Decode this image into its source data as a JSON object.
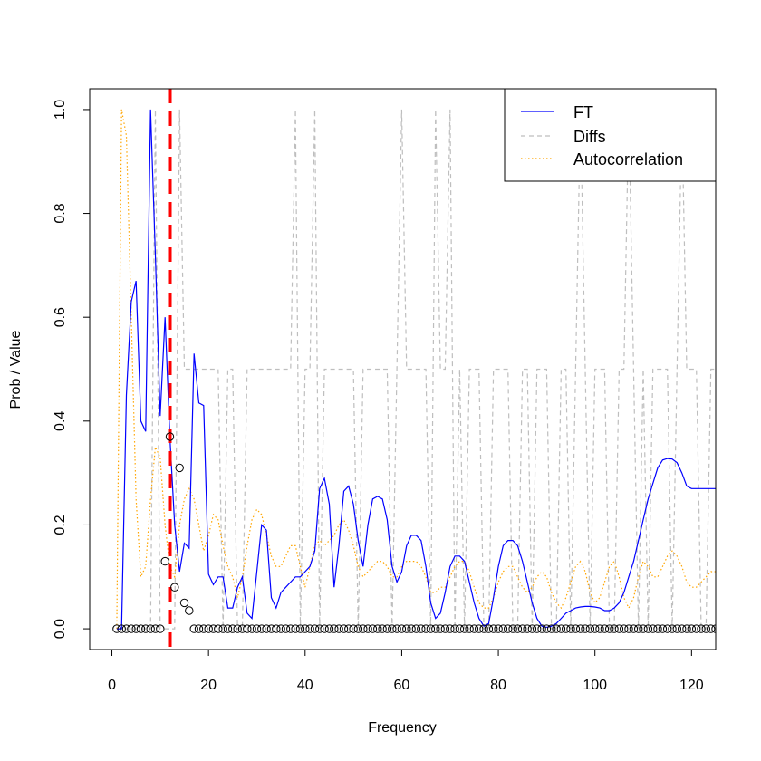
{
  "chart_data": {
    "type": "line",
    "xlabel": "Frequency",
    "ylabel": "Prob / Value",
    "xlim": [
      -4.6,
      125
    ],
    "ylim": [
      -0.04,
      1.04
    ],
    "x_ticks": [
      "0",
      "20",
      "40",
      "60",
      "80",
      "100",
      "120"
    ],
    "y_ticks": [
      "0.0",
      "0.2",
      "0.4",
      "0.6",
      "0.8",
      "1.0"
    ],
    "vline": {
      "x": 12,
      "color": "#ff0000",
      "style": "dashed"
    },
    "legend": {
      "position": "top-right",
      "entries": [
        {
          "label": "FT",
          "color": "#0000ff",
          "style": "solid"
        },
        {
          "label": "Diffs",
          "color": "#bebebe",
          "style": "dashed"
        },
        {
          "label": "Autocorrelation",
          "color": "#ffa500",
          "style": "dotted"
        }
      ]
    },
    "series": [
      {
        "name": "FT",
        "color": "#0000ff",
        "style": "solid",
        "x": [
          1,
          2,
          3,
          4,
          5,
          6,
          7,
          8,
          9,
          10,
          11,
          12,
          13,
          14,
          15,
          16,
          17,
          18,
          19,
          20,
          21,
          22,
          23,
          24,
          25,
          26,
          27,
          28,
          29,
          30,
          31,
          32,
          33,
          34,
          35,
          36,
          37,
          38,
          39,
          40,
          41,
          42,
          43,
          44,
          45,
          46,
          47,
          48,
          49,
          50,
          51,
          52,
          53,
          54,
          55,
          56,
          57,
          58,
          59,
          60,
          61,
          62,
          63,
          64,
          65,
          66,
          67,
          68,
          69,
          70,
          71,
          72,
          73,
          74,
          75,
          76,
          77,
          78,
          79,
          80,
          81,
          82,
          83,
          84,
          85,
          86,
          87,
          88,
          89,
          90,
          91,
          92,
          93,
          94,
          95,
          96,
          97,
          98,
          99,
          100,
          101,
          102,
          103,
          104,
          105,
          106,
          107,
          108,
          109,
          110,
          111,
          112,
          113,
          114,
          115,
          116,
          117,
          118,
          119,
          120,
          121,
          122,
          123,
          124,
          125
        ],
        "values": [
          0,
          0,
          0.45,
          0.63,
          0.67,
          0.4,
          0.38,
          1.0,
          0.72,
          0.41,
          0.6,
          0.37,
          0.2,
          0.11,
          0.165,
          0.155,
          0.53,
          0.435,
          0.43,
          0.105,
          0.085,
          0.1,
          0.1,
          0.04,
          0.04,
          0.08,
          0.1,
          0.03,
          0.02,
          0.11,
          0.2,
          0.19,
          0.06,
          0.04,
          0.07,
          0.08,
          0.09,
          0.1,
          0.1,
          0.11,
          0.12,
          0.15,
          0.27,
          0.29,
          0.24,
          0.08,
          0.16,
          0.265,
          0.275,
          0.24,
          0.17,
          0.12,
          0.2,
          0.25,
          0.255,
          0.25,
          0.21,
          0.12,
          0.09,
          0.11,
          0.16,
          0.18,
          0.18,
          0.17,
          0.12,
          0.05,
          0.02,
          0.03,
          0.07,
          0.12,
          0.14,
          0.14,
          0.13,
          0.09,
          0.05,
          0.02,
          0.005,
          0.01,
          0.06,
          0.12,
          0.16,
          0.17,
          0.17,
          0.16,
          0.13,
          0.09,
          0.05,
          0.02,
          0.005,
          0.003,
          0.005,
          0.01,
          0.02,
          0.03,
          0.035,
          0.04,
          0.042,
          0.043,
          0.043,
          0.042,
          0.04,
          0.035,
          0.035,
          0.04,
          0.05,
          0.07,
          0.1,
          0.13,
          0.17,
          0.21,
          0.25,
          0.28,
          0.31,
          0.325,
          0.328,
          0.327,
          0.32,
          0.3,
          0.275,
          0.27,
          0.27,
          0.27,
          0.27,
          0.27,
          0.27
        ]
      },
      {
        "name": "Diffs",
        "color": "#bebebe",
        "style": "dashed",
        "x": [
          1,
          2,
          3,
          4,
          5,
          6,
          7,
          8,
          9,
          10,
          11,
          12,
          13,
          14,
          15,
          16,
          17,
          18,
          19,
          20,
          21,
          22,
          23,
          24,
          25,
          26,
          27,
          28,
          29,
          30,
          31,
          32,
          33,
          34,
          35,
          36,
          37,
          38,
          39,
          40,
          41,
          42,
          43,
          44,
          45,
          46,
          47,
          48,
          49,
          50,
          51,
          52,
          53,
          54,
          55,
          56,
          57,
          58,
          59,
          60,
          61,
          62,
          63,
          64,
          65,
          66,
          67,
          68,
          69,
          70,
          71,
          72,
          73,
          74,
          75,
          76,
          77,
          78,
          79,
          80,
          81,
          82,
          83,
          84,
          85,
          86,
          87,
          88,
          89,
          90,
          91,
          92,
          93,
          94,
          95,
          96,
          97,
          98,
          99,
          100,
          101,
          102,
          103,
          104,
          105,
          106,
          107,
          108,
          109,
          110,
          111,
          112,
          113,
          114,
          115,
          116,
          117,
          118,
          119,
          120,
          121,
          122,
          123,
          124,
          125
        ],
        "values": [
          0,
          0,
          0,
          0,
          0,
          0,
          0,
          0,
          1,
          0,
          0,
          0,
          0,
          1,
          0.5,
          0.5,
          0.5,
          0.5,
          0.5,
          0.5,
          0.5,
          0.5,
          0,
          0.5,
          0.5,
          0,
          0,
          0.5,
          0.5,
          0.5,
          0.5,
          0.5,
          0.5,
          0.5,
          0.5,
          0.5,
          0.5,
          1,
          0,
          0.5,
          0.5,
          1,
          0,
          0.5,
          0.5,
          0.5,
          0.5,
          0.5,
          0.5,
          0.5,
          0,
          0.5,
          0.5,
          0.5,
          0.5,
          0.5,
          0.5,
          0,
          0.5,
          1,
          0.5,
          0.5,
          0.5,
          0.5,
          0.5,
          0,
          1,
          0.5,
          0.5,
          1,
          0,
          0.5,
          0,
          0.5,
          0.5,
          0.5,
          0,
          0,
          0.5,
          0.5,
          0.5,
          0.5,
          0,
          0,
          0.5,
          0.5,
          0,
          0.5,
          0.5,
          0.5,
          0,
          0,
          0.5,
          0.5,
          0,
          0.5,
          1,
          0.5,
          0,
          0.5,
          0.5,
          0.5,
          0,
          0,
          0.5,
          0.5,
          1,
          0.5,
          0,
          0.5,
          0,
          0.5,
          0.5,
          0.5,
          0.5,
          0,
          0.5,
          1,
          0.5,
          0.5,
          0.5,
          0,
          0,
          0.5,
          0.5
        ]
      },
      {
        "name": "Autocorrelation",
        "color": "#ffa500",
        "style": "dotted",
        "x": [
          1,
          2,
          3,
          4,
          5,
          6,
          7,
          8,
          9,
          10,
          11,
          12,
          13,
          14,
          15,
          16,
          17,
          18,
          19,
          20,
          21,
          22,
          23,
          24,
          25,
          26,
          27,
          28,
          29,
          30,
          31,
          32,
          33,
          34,
          35,
          36,
          37,
          38,
          39,
          40,
          41,
          42,
          43,
          44,
          45,
          46,
          47,
          48,
          49,
          50,
          51,
          52,
          53,
          54,
          55,
          56,
          57,
          58,
          59,
          60,
          61,
          62,
          63,
          64,
          65,
          66,
          67,
          68,
          69,
          70,
          71,
          72,
          73,
          74,
          75,
          76,
          77,
          78,
          79,
          80,
          81,
          82,
          83,
          84,
          85,
          86,
          87,
          88,
          89,
          90,
          91,
          92,
          93,
          94,
          95,
          96,
          97,
          98,
          99,
          100,
          101,
          102,
          103,
          104,
          105,
          106,
          107,
          108,
          109,
          110,
          111,
          112,
          113,
          114,
          115,
          116,
          117,
          118,
          119,
          120,
          121,
          122,
          123,
          124,
          125
        ],
        "values": [
          0,
          1.0,
          0.95,
          0.6,
          0.25,
          0.1,
          0.12,
          0.25,
          0.35,
          0.33,
          0.2,
          0.12,
          0.1,
          0.2,
          0.25,
          0.27,
          0.25,
          0.2,
          0.15,
          0.18,
          0.22,
          0.21,
          0.16,
          0.12,
          0.1,
          0.06,
          0.1,
          0.16,
          0.21,
          0.23,
          0.22,
          0.18,
          0.14,
          0.12,
          0.12,
          0.14,
          0.16,
          0.16,
          0.12,
          0.08,
          0.12,
          0.16,
          0.17,
          0.16,
          0.17,
          0.18,
          0.2,
          0.21,
          0.19,
          0.16,
          0.12,
          0.1,
          0.11,
          0.12,
          0.13,
          0.13,
          0.12,
          0.1,
          0.1,
          0.12,
          0.13,
          0.13,
          0.13,
          0.12,
          0.1,
          0.07,
          0.07,
          0.08,
          0.08,
          0.1,
          0.12,
          0.13,
          0.13,
          0.11,
          0.08,
          0.05,
          0.04,
          0.04,
          0.06,
          0.09,
          0.11,
          0.12,
          0.12,
          0.1,
          0.08,
          0.07,
          0.08,
          0.1,
          0.11,
          0.1,
          0.07,
          0.05,
          0.04,
          0.06,
          0.09,
          0.12,
          0.13,
          0.11,
          0.07,
          0.05,
          0.06,
          0.09,
          0.12,
          0.13,
          0.1,
          0.06,
          0.04,
          0.06,
          0.1,
          0.13,
          0.12,
          0.1,
          0.1,
          0.12,
          0.14,
          0.15,
          0.14,
          0.12,
          0.09,
          0.08,
          0.08,
          0.09,
          0.1,
          0.11,
          0.11
        ]
      },
      {
        "name": "",
        "color": "#000000",
        "style": "points",
        "x": [
          1,
          2,
          3,
          4,
          5,
          6,
          7,
          8,
          9,
          10,
          11,
          12,
          13,
          14,
          15,
          16,
          17,
          18,
          19,
          20,
          21,
          22,
          23,
          24,
          25,
          26,
          27,
          28,
          29,
          30,
          31,
          32,
          33,
          34,
          35,
          36,
          37,
          38,
          39,
          40,
          41,
          42,
          43,
          44,
          45,
          46,
          47,
          48,
          49,
          50,
          51,
          52,
          53,
          54,
          55,
          56,
          57,
          58,
          59,
          60,
          61,
          62,
          63,
          64,
          65,
          66,
          67,
          68,
          69,
          70,
          71,
          72,
          73,
          74,
          75,
          76,
          77,
          78,
          79,
          80,
          81,
          82,
          83,
          84,
          85,
          86,
          87,
          88,
          89,
          90,
          91,
          92,
          93,
          94,
          95,
          96,
          97,
          98,
          99,
          100,
          101,
          102,
          103,
          104,
          105,
          106,
          107,
          108,
          109,
          110,
          111,
          112,
          113,
          114,
          115,
          116,
          117,
          118,
          119,
          120,
          121,
          122,
          123,
          124,
          125
        ],
        "values": [
          0,
          0,
          0,
          0,
          0,
          0,
          0,
          0,
          0,
          0,
          0.13,
          0.37,
          0.08,
          0.31,
          0.05,
          0.035,
          0,
          0,
          0,
          0,
          0,
          0,
          0,
          0,
          0,
          0,
          0,
          0,
          0,
          0,
          0,
          0,
          0,
          0,
          0,
          0,
          0,
          0,
          0,
          0,
          0,
          0,
          0,
          0,
          0,
          0,
          0,
          0,
          0,
          0,
          0,
          0,
          0,
          0,
          0,
          0,
          0,
          0,
          0,
          0,
          0,
          0,
          0,
          0,
          0,
          0,
          0,
          0,
          0,
          0,
          0,
          0,
          0,
          0,
          0,
          0,
          0,
          0,
          0,
          0,
          0,
          0,
          0,
          0,
          0,
          0,
          0,
          0,
          0,
          0,
          0,
          0,
          0,
          0,
          0,
          0,
          0,
          0,
          0,
          0,
          0,
          0,
          0,
          0,
          0,
          0,
          0,
          0,
          0,
          0,
          0,
          0,
          0,
          0,
          0,
          0,
          0,
          0,
          0,
          0,
          0,
          0,
          0,
          0,
          0
        ]
      }
    ]
  }
}
